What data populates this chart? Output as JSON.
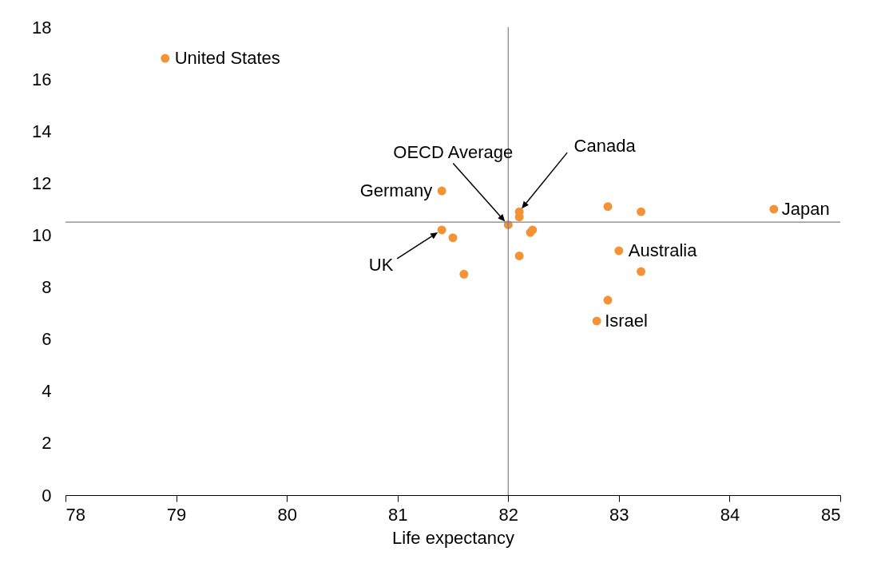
{
  "chart_data": {
    "type": "scatter",
    "xlabel": "Life expectancy",
    "x": [
      78.9,
      81.4,
      81.4,
      81.5,
      81.6,
      82.0,
      82.1,
      82.1,
      82.1,
      82.2,
      82.22,
      82.9,
      83.2,
      84.4,
      83.0,
      83.2,
      82.9,
      82.8
    ],
    "values": [
      16.8,
      11.7,
      10.2,
      9.9,
      8.5,
      10.4,
      10.9,
      10.7,
      9.2,
      10.1,
      10.2,
      11.1,
      10.9,
      11.0,
      9.4,
      8.6,
      7.5,
      6.7
    ],
    "color": "#f39237",
    "marker": "circle",
    "xlim": [
      78,
      85
    ],
    "xticks": [
      78,
      79,
      80,
      81,
      82,
      83,
      84,
      85
    ],
    "ylim": [
      0,
      18
    ],
    "yticks": [
      0,
      2,
      4,
      6,
      8,
      10,
      12,
      14,
      16,
      18
    ],
    "grid": false,
    "legend": false,
    "ref_lines": [
      {
        "axis": "x",
        "value": 82,
        "color": "#808080"
      },
      {
        "axis": "y",
        "value": 10.5,
        "color": "#808080"
      }
    ],
    "annotations": [
      {
        "text": "United States",
        "x": 78.9,
        "y": 16.8
      },
      {
        "text": "Germany",
        "x": 81.4,
        "y": 11.7
      },
      "OECD Average",
      "Canada",
      "UK",
      {
        "text": "Japan",
        "x": 84.4,
        "y": 11.0
      },
      {
        "text": "Australia",
        "x": 83.0,
        "y": 9.4
      },
      {
        "text": "Israel",
        "x": 82.8,
        "y": 6.7
      }
    ]
  }
}
